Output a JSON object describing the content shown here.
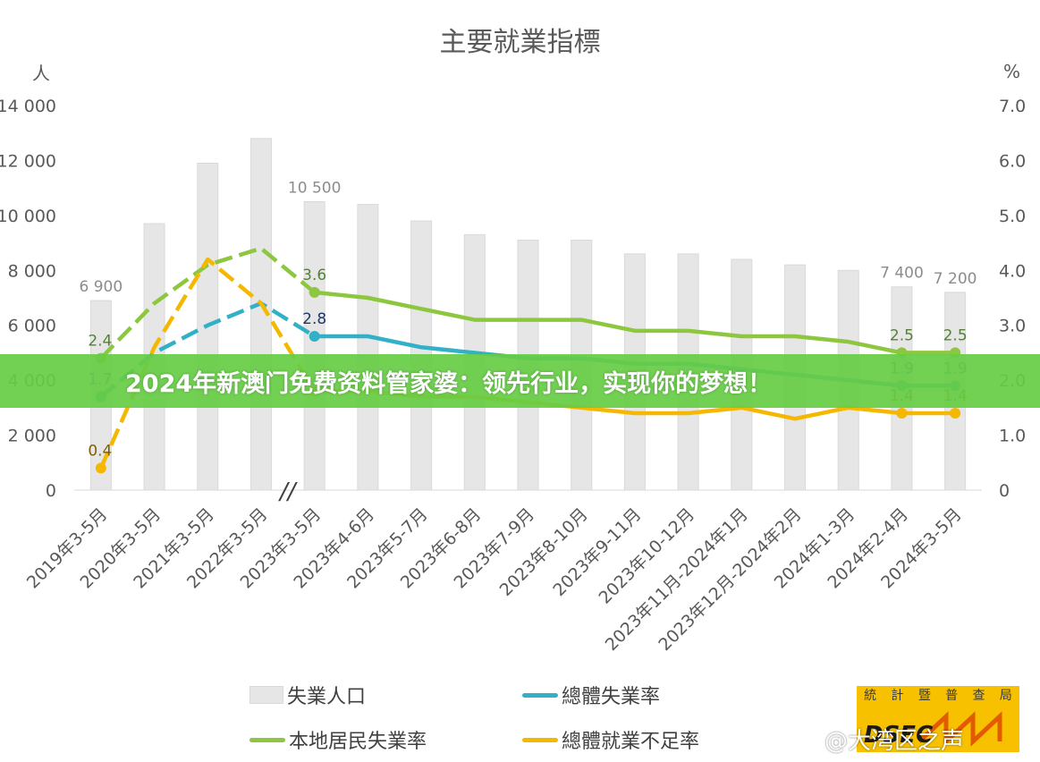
{
  "chart_data": {
    "type": "bar",
    "title": "主要就業指標",
    "y_left_unit": "人",
    "y_right_unit": "%",
    "ylim_left": [
      0,
      14000
    ],
    "ylim_right": [
      0,
      7.0
    ],
    "y_left_ticks": [
      "0",
      "2 000",
      "4 000",
      "6 000",
      "8 000",
      "10 000",
      "12 000",
      "14 000"
    ],
    "y_right_ticks": [
      "0",
      "1.0",
      "2.0",
      "3.0",
      "4.0",
      "5.0",
      "6.0",
      "7.0"
    ],
    "categories": [
      "2019年3-5月",
      "2020年3-5月",
      "2021年3-5月",
      "2022年3-5月",
      "2023年3-5月",
      "2023年4-6月",
      "2023年5-7月",
      "2023年6-8月",
      "2023年7-9月",
      "2023年8-10月",
      "2023年9-11月",
      "2023年10-12月",
      "2023年11月-2024年1月",
      "2023年12月-2024年2月",
      "2024年1-3月",
      "2024年2-4月",
      "2024年3-5月"
    ],
    "axis_break": "//",
    "series": [
      {
        "name": "失業人口",
        "type": "bar",
        "axis": "left",
        "color": "#e7e6e6",
        "values": [
          6900,
          9700,
          11900,
          12800,
          10500,
          10400,
          9800,
          9300,
          9100,
          9100,
          8600,
          8600,
          8400,
          8200,
          8000,
          7400,
          7200
        ]
      },
      {
        "name": "總體失業率",
        "type": "line",
        "axis": "right",
        "color": "#31b0c8",
        "values": [
          1.7,
          2.5,
          3.0,
          3.4,
          2.8,
          2.8,
          2.6,
          2.5,
          2.4,
          2.4,
          2.3,
          2.3,
          2.2,
          2.1,
          2.0,
          1.9,
          1.9
        ]
      },
      {
        "name": "本地居民失業率",
        "type": "line",
        "axis": "right",
        "color": "#8dc63f",
        "values": [
          2.4,
          3.4,
          4.1,
          4.4,
          3.6,
          3.5,
          3.3,
          3.1,
          3.1,
          3.1,
          2.9,
          2.9,
          2.8,
          2.8,
          2.7,
          2.5,
          2.5
        ]
      },
      {
        "name": "總體就業不足率",
        "type": "line",
        "axis": "right",
        "color": "#f5b800",
        "values": [
          0.4,
          2.6,
          4.2,
          3.4,
          1.8,
          1.8,
          1.7,
          1.7,
          1.6,
          1.5,
          1.4,
          1.4,
          1.5,
          1.3,
          1.5,
          1.4,
          1.4
        ]
      }
    ],
    "bar_labels": [
      {
        "index": 0,
        "text": "6 900"
      },
      {
        "index": 4,
        "text": "10 500"
      },
      {
        "index": 15,
        "text": "7 400"
      },
      {
        "index": 16,
        "text": "7 200"
      }
    ],
    "line_labels": [
      {
        "series": 1,
        "index": 0,
        "text": "1.7"
      },
      {
        "series": 1,
        "index": 4,
        "text": "2.8"
      },
      {
        "series": 1,
        "index": 15,
        "text": "1.9"
      },
      {
        "series": 1,
        "index": 16,
        "text": "1.9"
      },
      {
        "series": 2,
        "index": 0,
        "text": "2.4"
      },
      {
        "series": 2,
        "index": 4,
        "text": "3.6"
      },
      {
        "series": 2,
        "index": 15,
        "text": "2.5"
      },
      {
        "series": 2,
        "index": 16,
        "text": "2.5"
      },
      {
        "series": 3,
        "index": 0,
        "text": "0.4"
      },
      {
        "series": 3,
        "index": 15,
        "text": "1.4"
      },
      {
        "series": 3,
        "index": 16,
        "text": "1.4"
      }
    ],
    "dashed_segments_through_index": 4,
    "grid": false,
    "legend_position": "bottom"
  },
  "banner_text": "2024年新澳门免费资料管家婆：领先行业，实现你的梦想！",
  "logo": {
    "chars": [
      "統",
      "計",
      "暨",
      "普",
      "查",
      "局"
    ],
    "abbr": "DSEC"
  },
  "watermark": "@大湾区之声"
}
